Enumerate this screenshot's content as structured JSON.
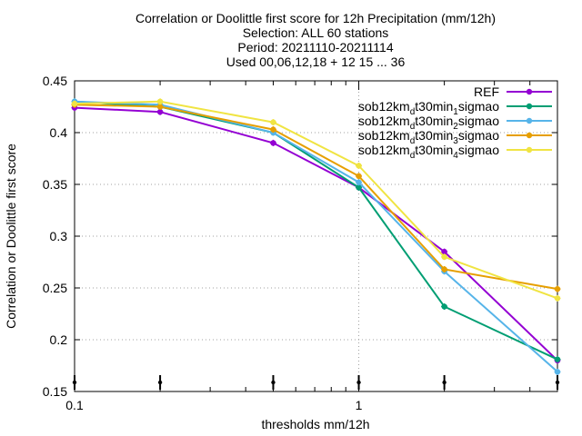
{
  "chart_data": {
    "type": "line",
    "title_lines": [
      "Correlation or Doolittle first score  for 12h Precipitation (mm/12h)",
      "Selection: ALL     60 stations",
      "Period: 20211110-20211114",
      "Used 00,06,12,18 + 12 15 ... 36"
    ],
    "xlabel": "thresholds mm/12h",
    "ylabel": "Correlation or Doolittle first score",
    "xscale": "log",
    "xlim": [
      0.1,
      5
    ],
    "ylim": [
      0.15,
      0.45
    ],
    "xticks": [
      {
        "value": 0.1,
        "label": "0.1"
      },
      {
        "value": 1,
        "label": "1"
      }
    ],
    "yticks": [
      {
        "value": 0.15,
        "label": "0.15"
      },
      {
        "value": 0.2,
        "label": "0.2"
      },
      {
        "value": 0.25,
        "label": "0.25"
      },
      {
        "value": 0.3,
        "label": "0.3"
      },
      {
        "value": 0.35,
        "label": "0.35"
      },
      {
        "value": 0.4,
        "label": "0.4"
      },
      {
        "value": 0.45,
        "label": "0.45"
      }
    ],
    "grid": true,
    "legend_position": "top-right",
    "x": [
      0.1,
      0.2,
      0.5,
      1,
      2,
      5
    ],
    "series": [
      {
        "name": "REF",
        "legend": [
          {
            "text": "REF"
          }
        ],
        "color": "#9400d3",
        "values": [
          0.424,
          0.42,
          0.39,
          0.347,
          0.285,
          0.18
        ]
      },
      {
        "name": "sob12km_dt30min_1sigmao",
        "legend": [
          {
            "text": "sob12km"
          },
          {
            "text": "d",
            "sub": true
          },
          {
            "text": "t30min"
          },
          {
            "text": "1",
            "sub": true
          },
          {
            "text": "sigmao"
          }
        ],
        "color": "#009e73",
        "values": [
          0.43,
          0.425,
          0.4,
          0.347,
          0.232,
          0.181
        ]
      },
      {
        "name": "sob12km_dt30min_2sigmao",
        "legend": [
          {
            "text": "sob12km"
          },
          {
            "text": "d",
            "sub": true
          },
          {
            "text": "t30min"
          },
          {
            "text": "2",
            "sub": true
          },
          {
            "text": "sigmao"
          }
        ],
        "color": "#56b4e9",
        "values": [
          0.43,
          0.427,
          0.4,
          0.352,
          0.266,
          0.169
        ]
      },
      {
        "name": "sob12km_dt30min_3sigmao",
        "legend": [
          {
            "text": "sob12km"
          },
          {
            "text": "d",
            "sub": true
          },
          {
            "text": "t30min"
          },
          {
            "text": "3",
            "sub": true
          },
          {
            "text": "sigmao"
          }
        ],
        "color": "#e69f00",
        "values": [
          0.427,
          0.425,
          0.403,
          0.358,
          0.268,
          0.249
        ]
      },
      {
        "name": "sob12km_dt30min_4sigmao",
        "legend": [
          {
            "text": "sob12km"
          },
          {
            "text": "d",
            "sub": true
          },
          {
            "text": "t30min"
          },
          {
            "text": "4",
            "sub": true
          },
          {
            "text": "sigmao"
          }
        ],
        "color": "#f0e442",
        "values": [
          0.428,
          0.43,
          0.41,
          0.368,
          0.28,
          0.24
        ]
      }
    ]
  }
}
